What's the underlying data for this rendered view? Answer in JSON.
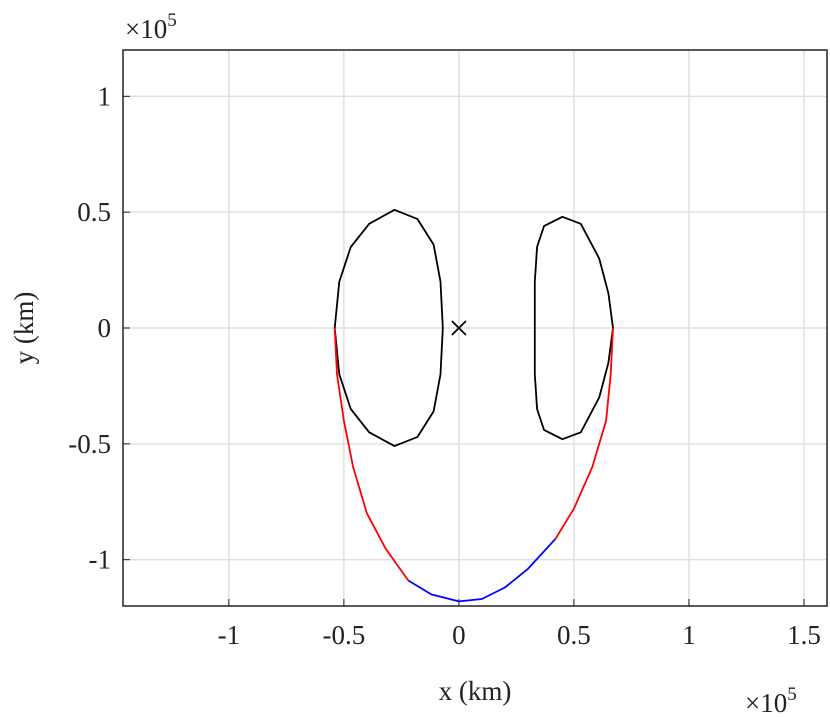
{
  "chart_data": {
    "type": "line",
    "xlabel": "x (km)",
    "ylabel": "y (km)",
    "x_multiplier": {
      "base": "×10",
      "exponent": "5"
    },
    "y_multiplier": {
      "base": "×10",
      "exponent": "5"
    },
    "xlim": [
      -1.46,
      1.6
    ],
    "ylim": [
      -1.2,
      1.2
    ],
    "xticks": [
      -1,
      -0.5,
      0,
      0.5,
      1,
      1.5
    ],
    "yticks": [
      -1,
      -0.5,
      0,
      0.5,
      1
    ],
    "grid": true,
    "series": [
      {
        "color": "#000000",
        "x": [
          -0.54,
          -0.52,
          -0.47,
          -0.39,
          -0.28,
          -0.18,
          -0.11,
          -0.08,
          -0.07,
          -0.08,
          -0.11,
          -0.18,
          -0.28,
          -0.39,
          -0.47,
          -0.52,
          -0.54
        ],
        "values": [
          0,
          0.2,
          0.35,
          0.45,
          0.51,
          0.47,
          0.36,
          0.2,
          0,
          -0.2,
          -0.36,
          -0.47,
          -0.51,
          -0.45,
          -0.35,
          -0.2,
          0
        ]
      },
      {
        "color": "#000000",
        "x": [
          0.33,
          0.33,
          0.34,
          0.37,
          0.45,
          0.53,
          0.61,
          0.65,
          0.67,
          0.65,
          0.61,
          0.53,
          0.45,
          0.37,
          0.34,
          0.33,
          0.33
        ],
        "values": [
          0,
          0.2,
          0.35,
          0.44,
          0.48,
          0.45,
          0.3,
          0.15,
          0,
          -0.15,
          -0.3,
          -0.45,
          -0.48,
          -0.44,
          -0.35,
          -0.2,
          0
        ]
      },
      {
        "color": "#ff0000",
        "x": [
          -0.54,
          -0.53,
          -0.5,
          -0.46,
          -0.4,
          -0.32,
          -0.22
        ],
        "values": [
          0,
          -0.2,
          -0.4,
          -0.6,
          -0.8,
          -0.95,
          -1.09
        ]
      },
      {
        "color": "#0000ff",
        "x": [
          -0.22,
          -0.12,
          0,
          0.1,
          0.2,
          0.3,
          0.42
        ],
        "values": [
          -1.09,
          -1.15,
          -1.18,
          -1.17,
          -1.12,
          -1.04,
          -0.91
        ]
      },
      {
        "color": "#ff0000",
        "x": [
          0.42,
          0.5,
          0.58,
          0.64,
          0.66,
          0.67
        ],
        "values": [
          -0.91,
          -0.78,
          -0.6,
          -0.4,
          -0.2,
          0
        ]
      }
    ],
    "markers": [
      {
        "symbol": "x",
        "color": "#000000",
        "x": 0,
        "y": 0
      }
    ]
  }
}
